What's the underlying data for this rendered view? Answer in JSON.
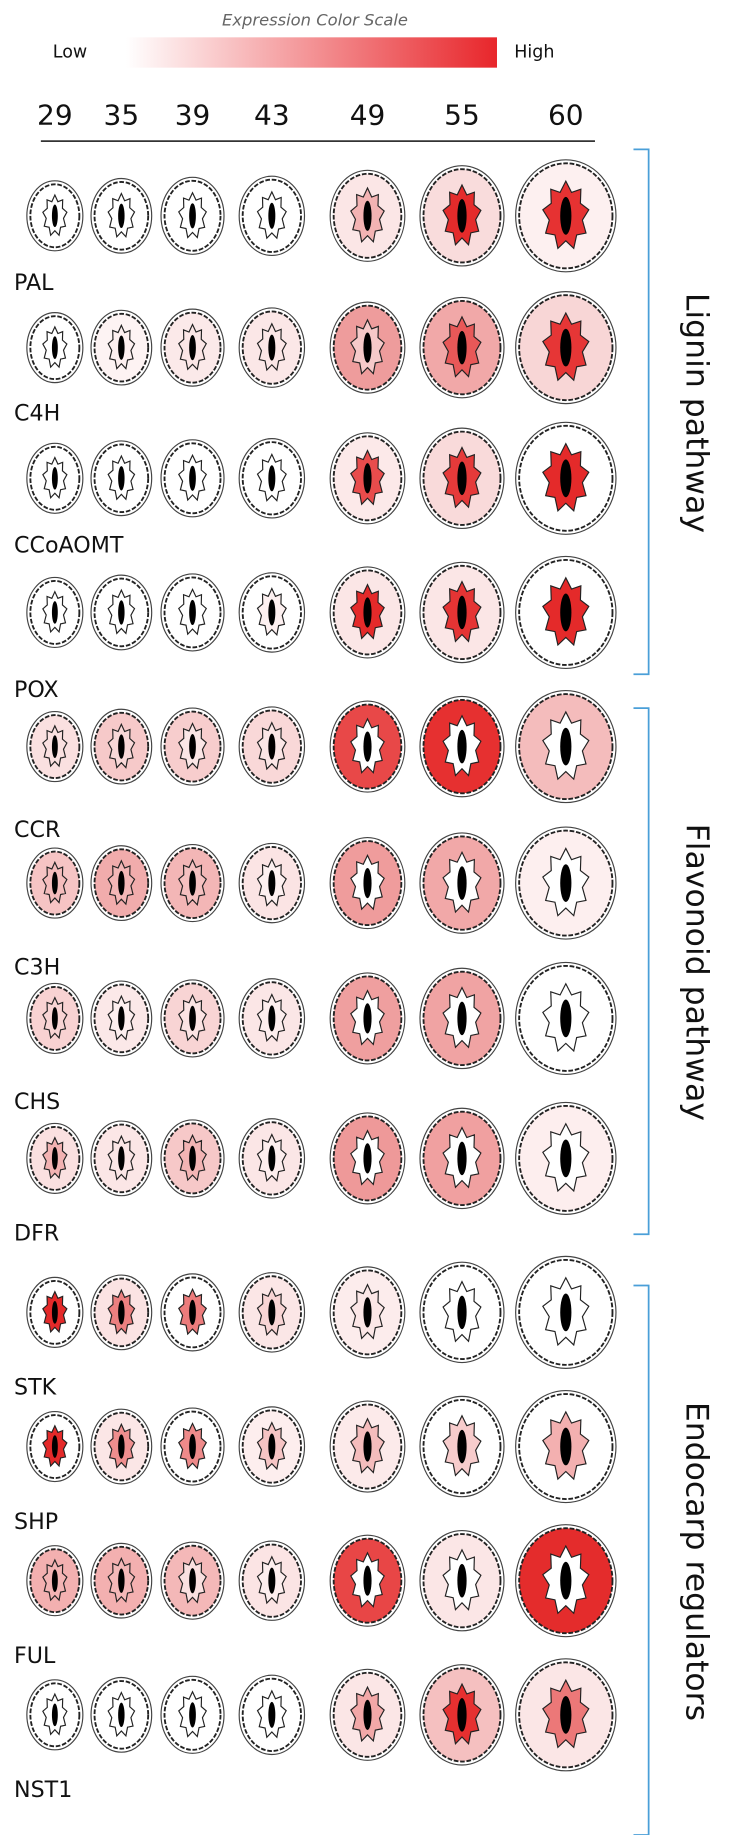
{
  "scale": {
    "title": "Expression Color Scale",
    "low": "Low",
    "high": "High",
    "colors": [
      "#ffffff",
      "#e8262b"
    ]
  },
  "columns": [
    "29",
    "35",
    "39",
    "43",
    "49",
    "55",
    "60"
  ],
  "rows": [
    {
      "label": "PAL",
      "cells": [
        {
          "outer": "#ffffff",
          "inner": "#ffffff"
        },
        {
          "outer": "#ffffff",
          "inner": "#ffffff"
        },
        {
          "outer": "#ffffff",
          "inner": "#ffffff"
        },
        {
          "outer": "#ffffff",
          "inner": "#ffffff"
        },
        {
          "outer": "#fbe6e6",
          "inner": "#f3b3b3"
        },
        {
          "outer": "#f9dcdc",
          "inner": "#e42b2b"
        },
        {
          "outer": "#fdf0f0",
          "inner": "#e63232"
        }
      ]
    },
    {
      "label": "C4H",
      "cells": [
        {
          "outer": "#ffffff",
          "inner": "#ffffff"
        },
        {
          "outer": "#fdf3f3",
          "inner": "#fdf0f0"
        },
        {
          "outer": "#fbe9e9",
          "inner": "#fbe6e6"
        },
        {
          "outer": "#fbe7e7",
          "inner": "#fbe6e6"
        },
        {
          "outer": "#ee9c9c",
          "inner": "#f6c9c9"
        },
        {
          "outer": "#f1a8a8",
          "inner": "#e85858"
        },
        {
          "outer": "#f8d6d6",
          "inner": "#e63636"
        }
      ]
    },
    {
      "label": "CCoAOMT",
      "cells": [
        {
          "outer": "#ffffff",
          "inner": "#ffffff"
        },
        {
          "outer": "#ffffff",
          "inner": "#ffffff"
        },
        {
          "outer": "#ffffff",
          "inner": "#ffffff"
        },
        {
          "outer": "#ffffff",
          "inner": "#ffffff"
        },
        {
          "outer": "#fce9e9",
          "inner": "#e84c4c"
        },
        {
          "outer": "#f9dada",
          "inner": "#e53a3a"
        },
        {
          "outer": "#ffffff",
          "inner": "#e42a2a"
        }
      ]
    },
    {
      "label": "POX",
      "cells": [
        {
          "outer": "#ffffff",
          "inner": "#ffffff"
        },
        {
          "outer": "#ffffff",
          "inner": "#ffffff"
        },
        {
          "outer": "#ffffff",
          "inner": "#ffffff"
        },
        {
          "outer": "#ffffff",
          "inner": "#fdf0f0"
        },
        {
          "outer": "#fbe6e6",
          "inner": "#e42a2a"
        },
        {
          "outer": "#fbe6e6",
          "inner": "#e53434"
        },
        {
          "outer": "#ffffff",
          "inner": "#e42a2a"
        }
      ]
    },
    {
      "label": "CCR",
      "cells": [
        {
          "outer": "#fae0e0",
          "inner": "#fae0e0"
        },
        {
          "outer": "#f6c9c9",
          "inner": "#f8d8d8"
        },
        {
          "outer": "#f7cdcd",
          "inner": "#fbe6e6"
        },
        {
          "outer": "#f9d8d8",
          "inner": "#fbe6e6"
        },
        {
          "outer": "#e84848",
          "inner": "#ffffff"
        },
        {
          "outer": "#e63030",
          "inner": "#ffffff"
        },
        {
          "outer": "#f4bcbc",
          "inner": "#ffffff"
        }
      ]
    },
    {
      "label": "C3H",
      "cells": [
        {
          "outer": "#f6c4c4",
          "inner": "#f4bcbc"
        },
        {
          "outer": "#f1acac",
          "inner": "#f3b6b6"
        },
        {
          "outer": "#f3b6b6",
          "inner": "#f5c0c0"
        },
        {
          "outer": "#fbe4e4",
          "inner": "#fdf0f0"
        },
        {
          "outer": "#ef9c9c",
          "inner": "#ffffff"
        },
        {
          "outer": "#f1a8a8",
          "inner": "#ffffff"
        },
        {
          "outer": "#fdefef",
          "inner": "#ffffff"
        }
      ]
    },
    {
      "label": "CHS",
      "cells": [
        {
          "outer": "#f8d2d2",
          "inner": "#f8d4d4"
        },
        {
          "outer": "#fbe8e8",
          "inner": "#fdefef"
        },
        {
          "outer": "#f8d4d4",
          "inner": "#fbe3e3"
        },
        {
          "outer": "#fbe6e6",
          "inner": "#fdeeee"
        },
        {
          "outer": "#ef9f9f",
          "inner": "#ffffff"
        },
        {
          "outer": "#f0a3a3",
          "inner": "#ffffff"
        },
        {
          "outer": "#ffffff",
          "inner": "#ffffff"
        }
      ]
    },
    {
      "label": "DFR",
      "cells": [
        {
          "outer": "#fae0e0",
          "inner": "#f2b2b2"
        },
        {
          "outer": "#fbe6e6",
          "inner": "#fbe6e6"
        },
        {
          "outer": "#f6c8c8",
          "inner": "#f3b4b4"
        },
        {
          "outer": "#fbe6e6",
          "inner": "#fdeeee"
        },
        {
          "outer": "#ee9999",
          "inner": "#ffffff"
        },
        {
          "outer": "#f0a0a0",
          "inner": "#ffffff"
        },
        {
          "outer": "#fdeeee",
          "inner": "#ffffff"
        }
      ]
    },
    {
      "label": "STK",
      "cells": [
        {
          "outer": "#ffffff",
          "inner": "#e42a2a"
        },
        {
          "outer": "#fbe3e3",
          "inner": "#ec8080"
        },
        {
          "outer": "#ffffff",
          "inner": "#ec7c7c"
        },
        {
          "outer": "#fbe6e6",
          "inner": "#f8d4d4"
        },
        {
          "outer": "#fcecec",
          "inner": "#fbe6e6"
        },
        {
          "outer": "#ffffff",
          "inner": "#ffffff"
        },
        {
          "outer": "#ffffff",
          "inner": "#ffffff"
        }
      ]
    },
    {
      "label": "SHP",
      "cells": [
        {
          "outer": "#ffffff",
          "inner": "#e42a2a"
        },
        {
          "outer": "#fbe6e6",
          "inner": "#ee8e8e"
        },
        {
          "outer": "#ffffff",
          "inner": "#ee8a8a"
        },
        {
          "outer": "#fdeeee",
          "inner": "#f6c4c4"
        },
        {
          "outer": "#fceaea",
          "inner": "#f4bcbc"
        },
        {
          "outer": "#ffffff",
          "inner": "#f7cccc"
        },
        {
          "outer": "#ffffff",
          "inner": "#f3b0b0"
        }
      ]
    },
    {
      "label": "FUL",
      "cells": [
        {
          "outer": "#f3b0b0",
          "inner": "#f3b4b4"
        },
        {
          "outer": "#f3b0b0",
          "inner": "#f4b8b8"
        },
        {
          "outer": "#f4b8b8",
          "inner": "#fae0e0"
        },
        {
          "outer": "#fbe4e4",
          "inner": "#fdeeee"
        },
        {
          "outer": "#e84646",
          "inner": "#ffffff"
        },
        {
          "outer": "#fbe6e6",
          "inner": "#ffffff"
        },
        {
          "outer": "#e42c2c",
          "inner": "#ffffff"
        }
      ]
    },
    {
      "label": "NST1",
      "cells": [
        {
          "outer": "#ffffff",
          "inner": "#ffffff"
        },
        {
          "outer": "#ffffff",
          "inner": "#ffffff"
        },
        {
          "outer": "#ffffff",
          "inner": "#ffffff"
        },
        {
          "outer": "#ffffff",
          "inner": "#ffffff"
        },
        {
          "outer": "#fbe6e6",
          "inner": "#f2a8a8"
        },
        {
          "outer": "#f5c0c0",
          "inner": "#e63030"
        },
        {
          "outer": "#fbe6e6",
          "inner": "#ec7878"
        }
      ]
    }
  ],
  "groups": [
    {
      "label": "Lignin pathway"
    },
    {
      "label": "Flavonoid pathway"
    },
    {
      "label": "Endocarp regulators"
    }
  ]
}
